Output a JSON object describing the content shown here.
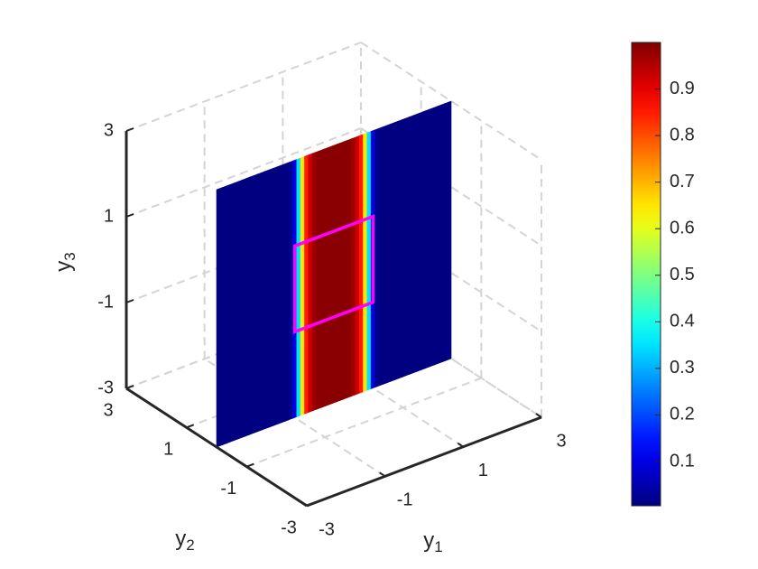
{
  "chart_data": {
    "type": "slice",
    "xlabel": {
      "text": "y",
      "sub": "1"
    },
    "ylabel": {
      "text": "y",
      "sub": "2"
    },
    "zlabel": {
      "text": "y",
      "sub": "3"
    },
    "xlim": [
      -3,
      3
    ],
    "ylim": [
      -3,
      3
    ],
    "zlim": [
      -3,
      3
    ],
    "xticks": [
      -3,
      -1,
      1,
      3
    ],
    "yticks": [
      -3,
      -1,
      1,
      3
    ],
    "zticks": [
      -3,
      -1,
      1,
      3
    ],
    "grid": true,
    "colormap": "jet",
    "clim": [
      0.005,
      1
    ],
    "cticks": [
      0.1,
      0.2,
      0.3,
      0.4,
      0.5,
      0.6,
      0.7,
      0.8,
      0.9
    ],
    "slice": {
      "y": 0,
      "x": [
        -3,
        -2.9,
        -2.8,
        -2.7,
        -2.6,
        -2.5,
        -2.4,
        -2.3,
        -2.2,
        -2.1,
        -2,
        -1.9,
        -1.8,
        -1.7,
        -1.6,
        -1.5,
        -1.4,
        -1.3,
        -1.2,
        -1.1,
        -1,
        -0.9,
        -0.8,
        -0.7,
        -0.6,
        -0.5,
        -0.4,
        -0.3,
        -0.2,
        -0.1,
        0,
        0.1,
        0.2,
        0.3,
        0.4,
        0.5,
        0.6,
        0.7,
        0.8,
        0.9,
        1,
        1.1,
        1.2,
        1.3,
        1.4,
        1.5,
        1.6,
        1.7,
        1.8,
        1.9,
        2,
        2.1,
        2.2,
        2.3,
        2.4,
        2.5,
        2.6,
        2.7,
        2.8,
        2.9,
        3
      ],
      "values": [
        0.005,
        0.005,
        0.005,
        0.005,
        0.005,
        0.005,
        0.005,
        0.005,
        0.005,
        0.005,
        0.005,
        0.005,
        0.005,
        0.005,
        0.005,
        0.005,
        0.005,
        0.005,
        0.005,
        0.02,
        0.1,
        0.35,
        0.65,
        0.85,
        0.93,
        0.97,
        0.99,
        0.99,
        0.99,
        0.99,
        0.99,
        0.99,
        0.99,
        0.99,
        0.99,
        0.97,
        0.93,
        0.85,
        0.65,
        0.35,
        0.1,
        0.02,
        0.005,
        0.005,
        0.005,
        0.005,
        0.005,
        0.005,
        0.005,
        0.005,
        0.005,
        0.005,
        0.005,
        0.005,
        0.005,
        0.005,
        0.005,
        0.005,
        0.005,
        0.005,
        0.005
      ]
    },
    "box": {
      "x": [
        -1,
        1
      ],
      "z": [
        -1,
        1
      ],
      "color": "#ff00ff"
    }
  }
}
